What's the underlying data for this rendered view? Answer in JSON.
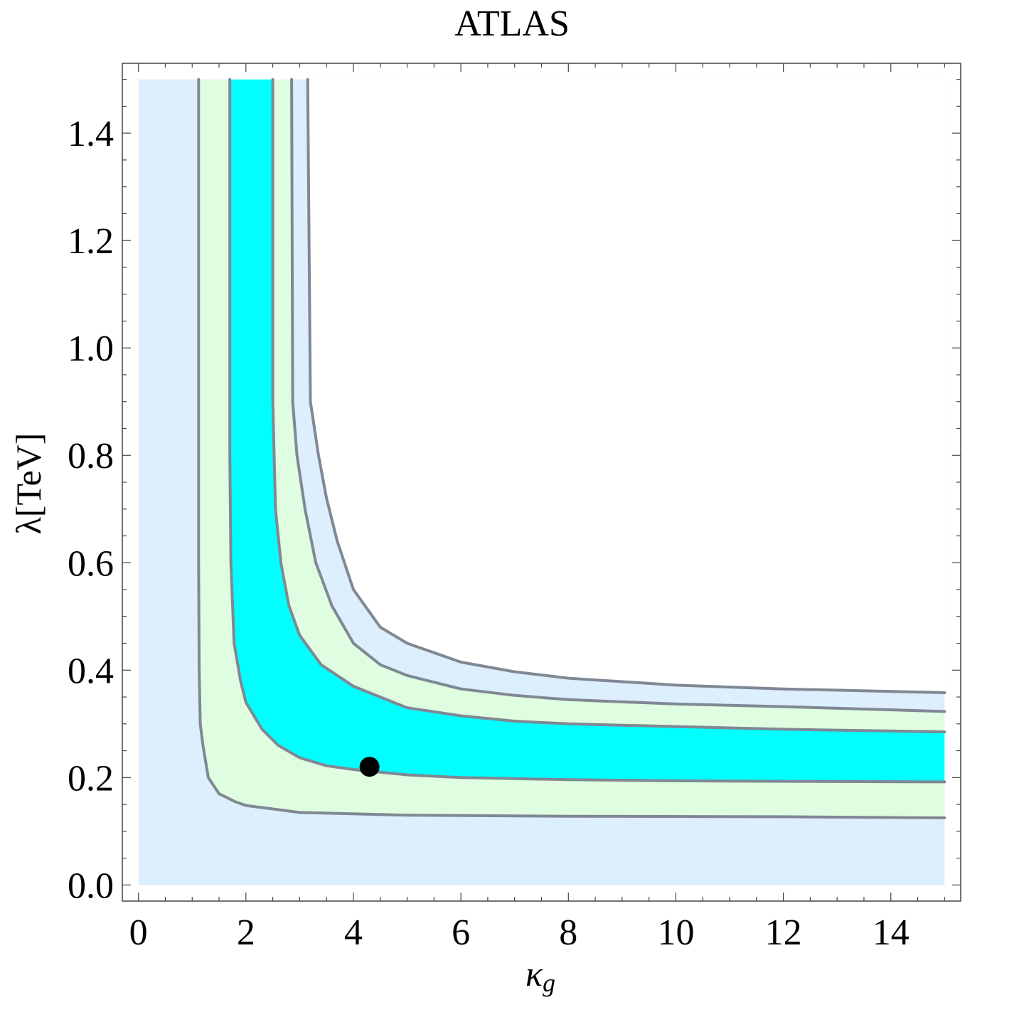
{
  "chart_data": {
    "type": "contour",
    "title": "ATLAS",
    "xlabel_symbol": "κ",
    "xlabel_sub": "g",
    "ylabel": "λ[TeV]",
    "xlim": [
      -0.3,
      15.3
    ],
    "ylim": [
      -0.03,
      1.53
    ],
    "xticks": [
      "0",
      "2",
      "4",
      "6",
      "8",
      "10",
      "12",
      "14"
    ],
    "yticks": [
      "0.0",
      "0.2",
      "0.4",
      "0.6",
      "0.8",
      "1.0",
      "1.2",
      "1.4"
    ],
    "xtick_values": [
      0,
      2,
      4,
      6,
      8,
      10,
      12,
      14
    ],
    "ytick_values": [
      0.0,
      0.2,
      0.4,
      0.6,
      0.8,
      1.0,
      1.2,
      1.4
    ],
    "domain": {
      "x": [
        0,
        15
      ],
      "y": [
        0,
        1.5
      ]
    },
    "colors": {
      "background": "#ffffff",
      "outer": "#ddeefd",
      "two_sigma": "#dffde0",
      "one_sigma": "#00ffff",
      "contour_line": "#808893",
      "best_fit": "#000000"
    },
    "contours": [
      {
        "name": "c1",
        "points": [
          [
            1.12,
            1.5
          ],
          [
            1.12,
            0.6
          ],
          [
            1.13,
            0.4
          ],
          [
            1.15,
            0.3
          ],
          [
            1.2,
            0.26
          ],
          [
            1.3,
            0.2
          ],
          [
            1.5,
            0.17
          ],
          [
            1.8,
            0.155
          ],
          [
            2.0,
            0.148
          ],
          [
            3.0,
            0.135
          ],
          [
            5.0,
            0.13
          ],
          [
            8.0,
            0.128
          ],
          [
            12.0,
            0.127
          ],
          [
            15.0,
            0.125
          ]
        ]
      },
      {
        "name": "c2",
        "points": [
          [
            1.7,
            1.5
          ],
          [
            1.7,
            0.8
          ],
          [
            1.72,
            0.6
          ],
          [
            1.78,
            0.45
          ],
          [
            1.9,
            0.38
          ],
          [
            2.0,
            0.34
          ],
          [
            2.3,
            0.29
          ],
          [
            2.6,
            0.26
          ],
          [
            3.0,
            0.237
          ],
          [
            3.5,
            0.222
          ],
          [
            4.0,
            0.215
          ],
          [
            5.0,
            0.205
          ],
          [
            6.0,
            0.2
          ],
          [
            8.0,
            0.196
          ],
          [
            10.0,
            0.194
          ],
          [
            12.0,
            0.193
          ],
          [
            15.0,
            0.192
          ]
        ]
      },
      {
        "name": "c3",
        "points": [
          [
            2.5,
            1.5
          ],
          [
            2.5,
            0.9
          ],
          [
            2.55,
            0.7
          ],
          [
            2.65,
            0.6
          ],
          [
            2.8,
            0.52
          ],
          [
            3.0,
            0.465
          ],
          [
            3.4,
            0.41
          ],
          [
            4.0,
            0.37
          ],
          [
            4.5,
            0.35
          ],
          [
            5.0,
            0.33
          ],
          [
            6.0,
            0.315
          ],
          [
            7.0,
            0.305
          ],
          [
            8.0,
            0.3
          ],
          [
            10.0,
            0.295
          ],
          [
            12.0,
            0.29
          ],
          [
            15.0,
            0.285
          ]
        ]
      },
      {
        "name": "c4",
        "points": [
          [
            2.85,
            1.5
          ],
          [
            2.87,
            0.9
          ],
          [
            2.95,
            0.8
          ],
          [
            3.1,
            0.7
          ],
          [
            3.3,
            0.6
          ],
          [
            3.6,
            0.52
          ],
          [
            4.0,
            0.45
          ],
          [
            4.5,
            0.41
          ],
          [
            5.0,
            0.39
          ],
          [
            6.0,
            0.365
          ],
          [
            7.0,
            0.353
          ],
          [
            8.0,
            0.345
          ],
          [
            10.0,
            0.337
          ],
          [
            12.0,
            0.332
          ],
          [
            15.0,
            0.323
          ]
        ]
      },
      {
        "name": "c5",
        "points": [
          [
            3.15,
            1.5
          ],
          [
            3.2,
            0.9
          ],
          [
            3.35,
            0.8
          ],
          [
            3.5,
            0.72
          ],
          [
            3.7,
            0.64
          ],
          [
            4.0,
            0.55
          ],
          [
            4.5,
            0.48
          ],
          [
            5.0,
            0.45
          ],
          [
            6.0,
            0.415
          ],
          [
            7.0,
            0.397
          ],
          [
            8.0,
            0.385
          ],
          [
            10.0,
            0.372
          ],
          [
            12.0,
            0.365
          ],
          [
            15.0,
            0.358
          ]
        ]
      }
    ],
    "best_fit": {
      "x": 4.3,
      "y": 0.22
    }
  }
}
